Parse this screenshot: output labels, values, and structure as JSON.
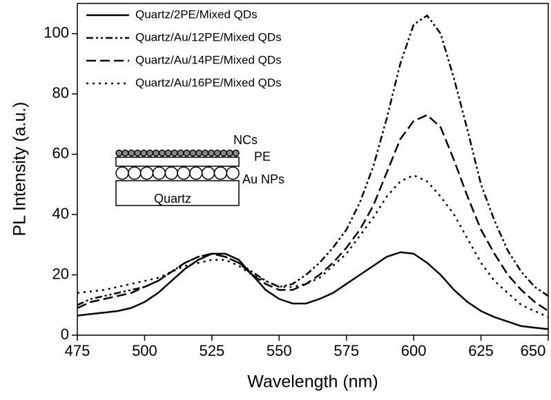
{
  "chart_data": {
    "type": "line",
    "x_label": "Wavelength (nm)",
    "y_label": "PL Intensity (a.u.)",
    "x": [
      475,
      480,
      485,
      490,
      495,
      500,
      505,
      510,
      515,
      520,
      525,
      530,
      535,
      540,
      545,
      550,
      555,
      560,
      565,
      570,
      575,
      580,
      585,
      590,
      595,
      600,
      605,
      610,
      615,
      620,
      625,
      630,
      635,
      640,
      645,
      650
    ],
    "series": [
      {
        "name": "Quartz/2PE/Mixed QDs",
        "color": "#000000",
        "style": "solid",
        "values": [
          6.5,
          7,
          7.5,
          8,
          9,
          11,
          14,
          18,
          22,
          25,
          27,
          27,
          25,
          20,
          15,
          12,
          10.5,
          10.5,
          12,
          14,
          17,
          20,
          23,
          26,
          27.5,
          27,
          24,
          20,
          15,
          11,
          8,
          6,
          4.5,
          3,
          2.5,
          2
        ]
      },
      {
        "name": "Quartz/Au/12PE/Mixed QDs",
        "color": "#000000",
        "style": "dash-dot-dot",
        "values": [
          10,
          12,
          13,
          14,
          15,
          16,
          18,
          21,
          24,
          26,
          27,
          26,
          24,
          21,
          18,
          16,
          17,
          20,
          24,
          29,
          35,
          44,
          56,
          72,
          90,
          103,
          106,
          100,
          85,
          68,
          50,
          38,
          28,
          21,
          16,
          13
        ]
      },
      {
        "name": "Quartz/Au/14PE/Mixed QDs",
        "color": "#000000",
        "style": "dash",
        "values": [
          9,
          11,
          12,
          13,
          14,
          16,
          18,
          21,
          24,
          26,
          27,
          26,
          24,
          20,
          17,
          15,
          15,
          17,
          20,
          24,
          29,
          35,
          43,
          54,
          65,
          71,
          73,
          69,
          58,
          46,
          35,
          27,
          20,
          15,
          11,
          8
        ]
      },
      {
        "name": "Quartz/Au/16PE/Mixed QDs",
        "color": "#000000",
        "style": "dot",
        "values": [
          14,
          14.5,
          15,
          16,
          17,
          18,
          19,
          21,
          23,
          24,
          25,
          25,
          23,
          20,
          18,
          16,
          16,
          17,
          19,
          23,
          27,
          33,
          39,
          46,
          51,
          53,
          51,
          46,
          40,
          32,
          24,
          18,
          14,
          10,
          8,
          6
        ]
      }
    ],
    "xlim": [
      475,
      650
    ],
    "xticks": [
      475,
      500,
      525,
      550,
      575,
      600,
      625,
      650
    ],
    "ylim": [
      0,
      110
    ],
    "yticks": [
      0,
      20,
      40,
      60,
      80,
      100
    ],
    "legend": "upper-left",
    "inset_labels": [
      "NCs",
      "PE",
      "Au NPs",
      "Quartz"
    ]
  }
}
